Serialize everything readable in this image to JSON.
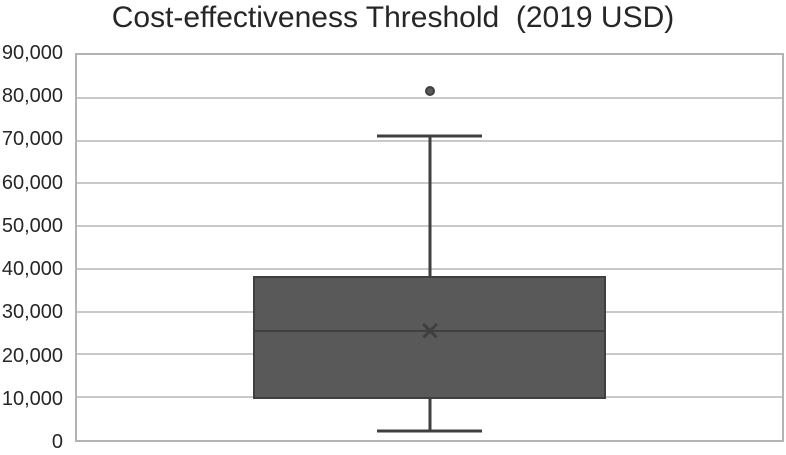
{
  "chart_data": {
    "type": "boxplot",
    "title": "Cost-effectiveness Threshold  (2019 USD)",
    "xlabel": "",
    "ylabel": "",
    "ylim": [
      0,
      90000
    ],
    "grid": "horizontal",
    "legend": "none",
    "yticks": [
      {
        "value": 90000,
        "label": "90,000"
      },
      {
        "value": 80000,
        "label": "80,000"
      },
      {
        "value": 70000,
        "label": "70,000"
      },
      {
        "value": 60000,
        "label": "60,000"
      },
      {
        "value": 50000,
        "label": "50,000"
      },
      {
        "value": 40000,
        "label": "40,000"
      },
      {
        "value": 30000,
        "label": "30,000"
      },
      {
        "value": 20000,
        "label": "20,000"
      },
      {
        "value": 10000,
        "label": "10,000"
      },
      {
        "value": 0,
        "label": "0"
      }
    ],
    "series": [
      {
        "name": "Cost-effectiveness threshold (2019 USD)",
        "min": 2000,
        "q1": 9500,
        "median": 25500,
        "mean": 25700,
        "q3": 38300,
        "max": 71000,
        "outliers": [
          81500
        ]
      }
    ],
    "layout": {
      "box_center_pct": 50,
      "box_width_pct": 50,
      "cap_width_pct": 15,
      "box_fill": "#595959",
      "line_color": "#3f3f3f",
      "gridline_color": "#c9c9c9",
      "border_color": "#b3b3b3",
      "text_color": "#262626"
    }
  }
}
